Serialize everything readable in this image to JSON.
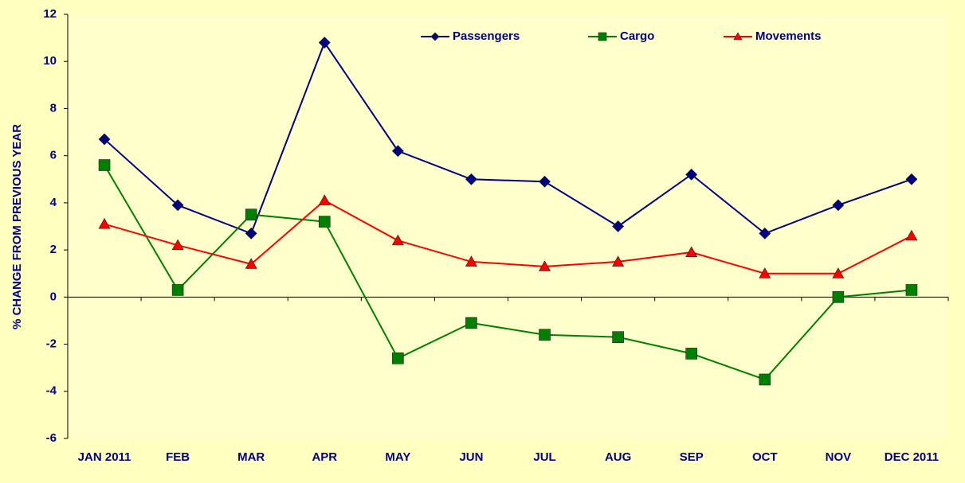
{
  "chart_data": {
    "type": "line",
    "y_label": "% CHANGE FROM PREVIOUS YEAR",
    "categories": [
      "JAN 2011",
      "FEB",
      "MAR",
      "APR",
      "MAY",
      "JUN",
      "JUL",
      "AUG",
      "SEP",
      "OCT",
      "NOV",
      "DEC 2011"
    ],
    "series": [
      {
        "name": "Passengers",
        "color": "#000080",
        "marker": "diamond",
        "values": [
          6.7,
          3.9,
          2.7,
          10.8,
          6.2,
          5.0,
          4.9,
          3.0,
          5.2,
          2.7,
          3.9,
          5.0
        ]
      },
      {
        "name": "Cargo",
        "color": "#008000",
        "marker": "square",
        "values": [
          5.6,
          0.3,
          3.5,
          3.2,
          -2.6,
          -1.1,
          -1.6,
          -1.7,
          -2.4,
          -3.5,
          0.0,
          0.3
        ]
      },
      {
        "name": "Movements",
        "color": "#ff0000",
        "marker": "triangle",
        "values": [
          3.1,
          2.2,
          1.4,
          4.1,
          2.4,
          1.5,
          1.3,
          1.5,
          1.9,
          1.0,
          1.0,
          2.6
        ]
      }
    ],
    "ylim": [
      -6,
      12
    ],
    "yticks": [
      -6,
      -4,
      -2,
      0,
      2,
      4,
      6,
      8,
      10,
      12
    ],
    "legend": "top"
  }
}
